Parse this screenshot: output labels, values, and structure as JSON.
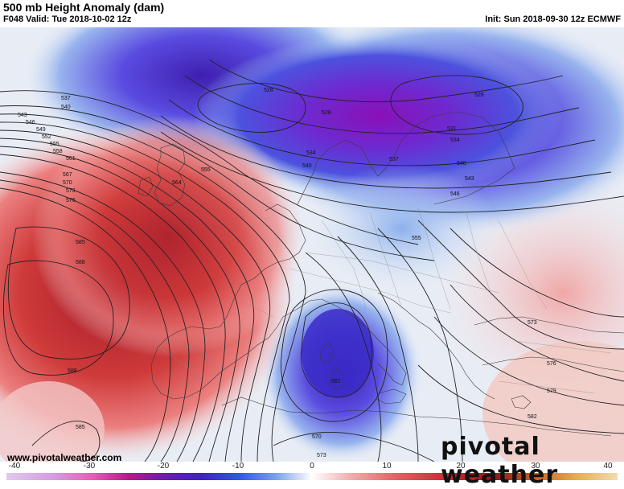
{
  "header": {
    "title": "500 mb Height Anomaly (dam)",
    "valid": "F048 Valid: Tue 2018-10-02 12z",
    "init": "Init: Sun 2018-09-30 12z ECMWF"
  },
  "footer": {
    "website": "www.pivotalweather.com",
    "brand": "pivotal weather"
  },
  "colorbar": {
    "ticks": [
      "-40",
      "-30",
      "-20",
      "-10",
      "0",
      "10",
      "20",
      "30",
      "40"
    ]
  },
  "contour_labels": [
    "537",
    "540",
    "543",
    "546",
    "549",
    "552",
    "555",
    "558",
    "561",
    "567",
    "570",
    "573",
    "576",
    "585",
    "588",
    "588",
    "585",
    "555",
    "564",
    "528",
    "528",
    "528",
    "531",
    "534",
    "534",
    "537",
    "540",
    "540",
    "543",
    "546",
    "555",
    "561",
    "570",
    "573",
    "573",
    "576",
    "579",
    "582"
  ],
  "colors": {
    "negative": "#3a2fd0",
    "positive": "#d2303a",
    "coast": "#333333"
  }
}
